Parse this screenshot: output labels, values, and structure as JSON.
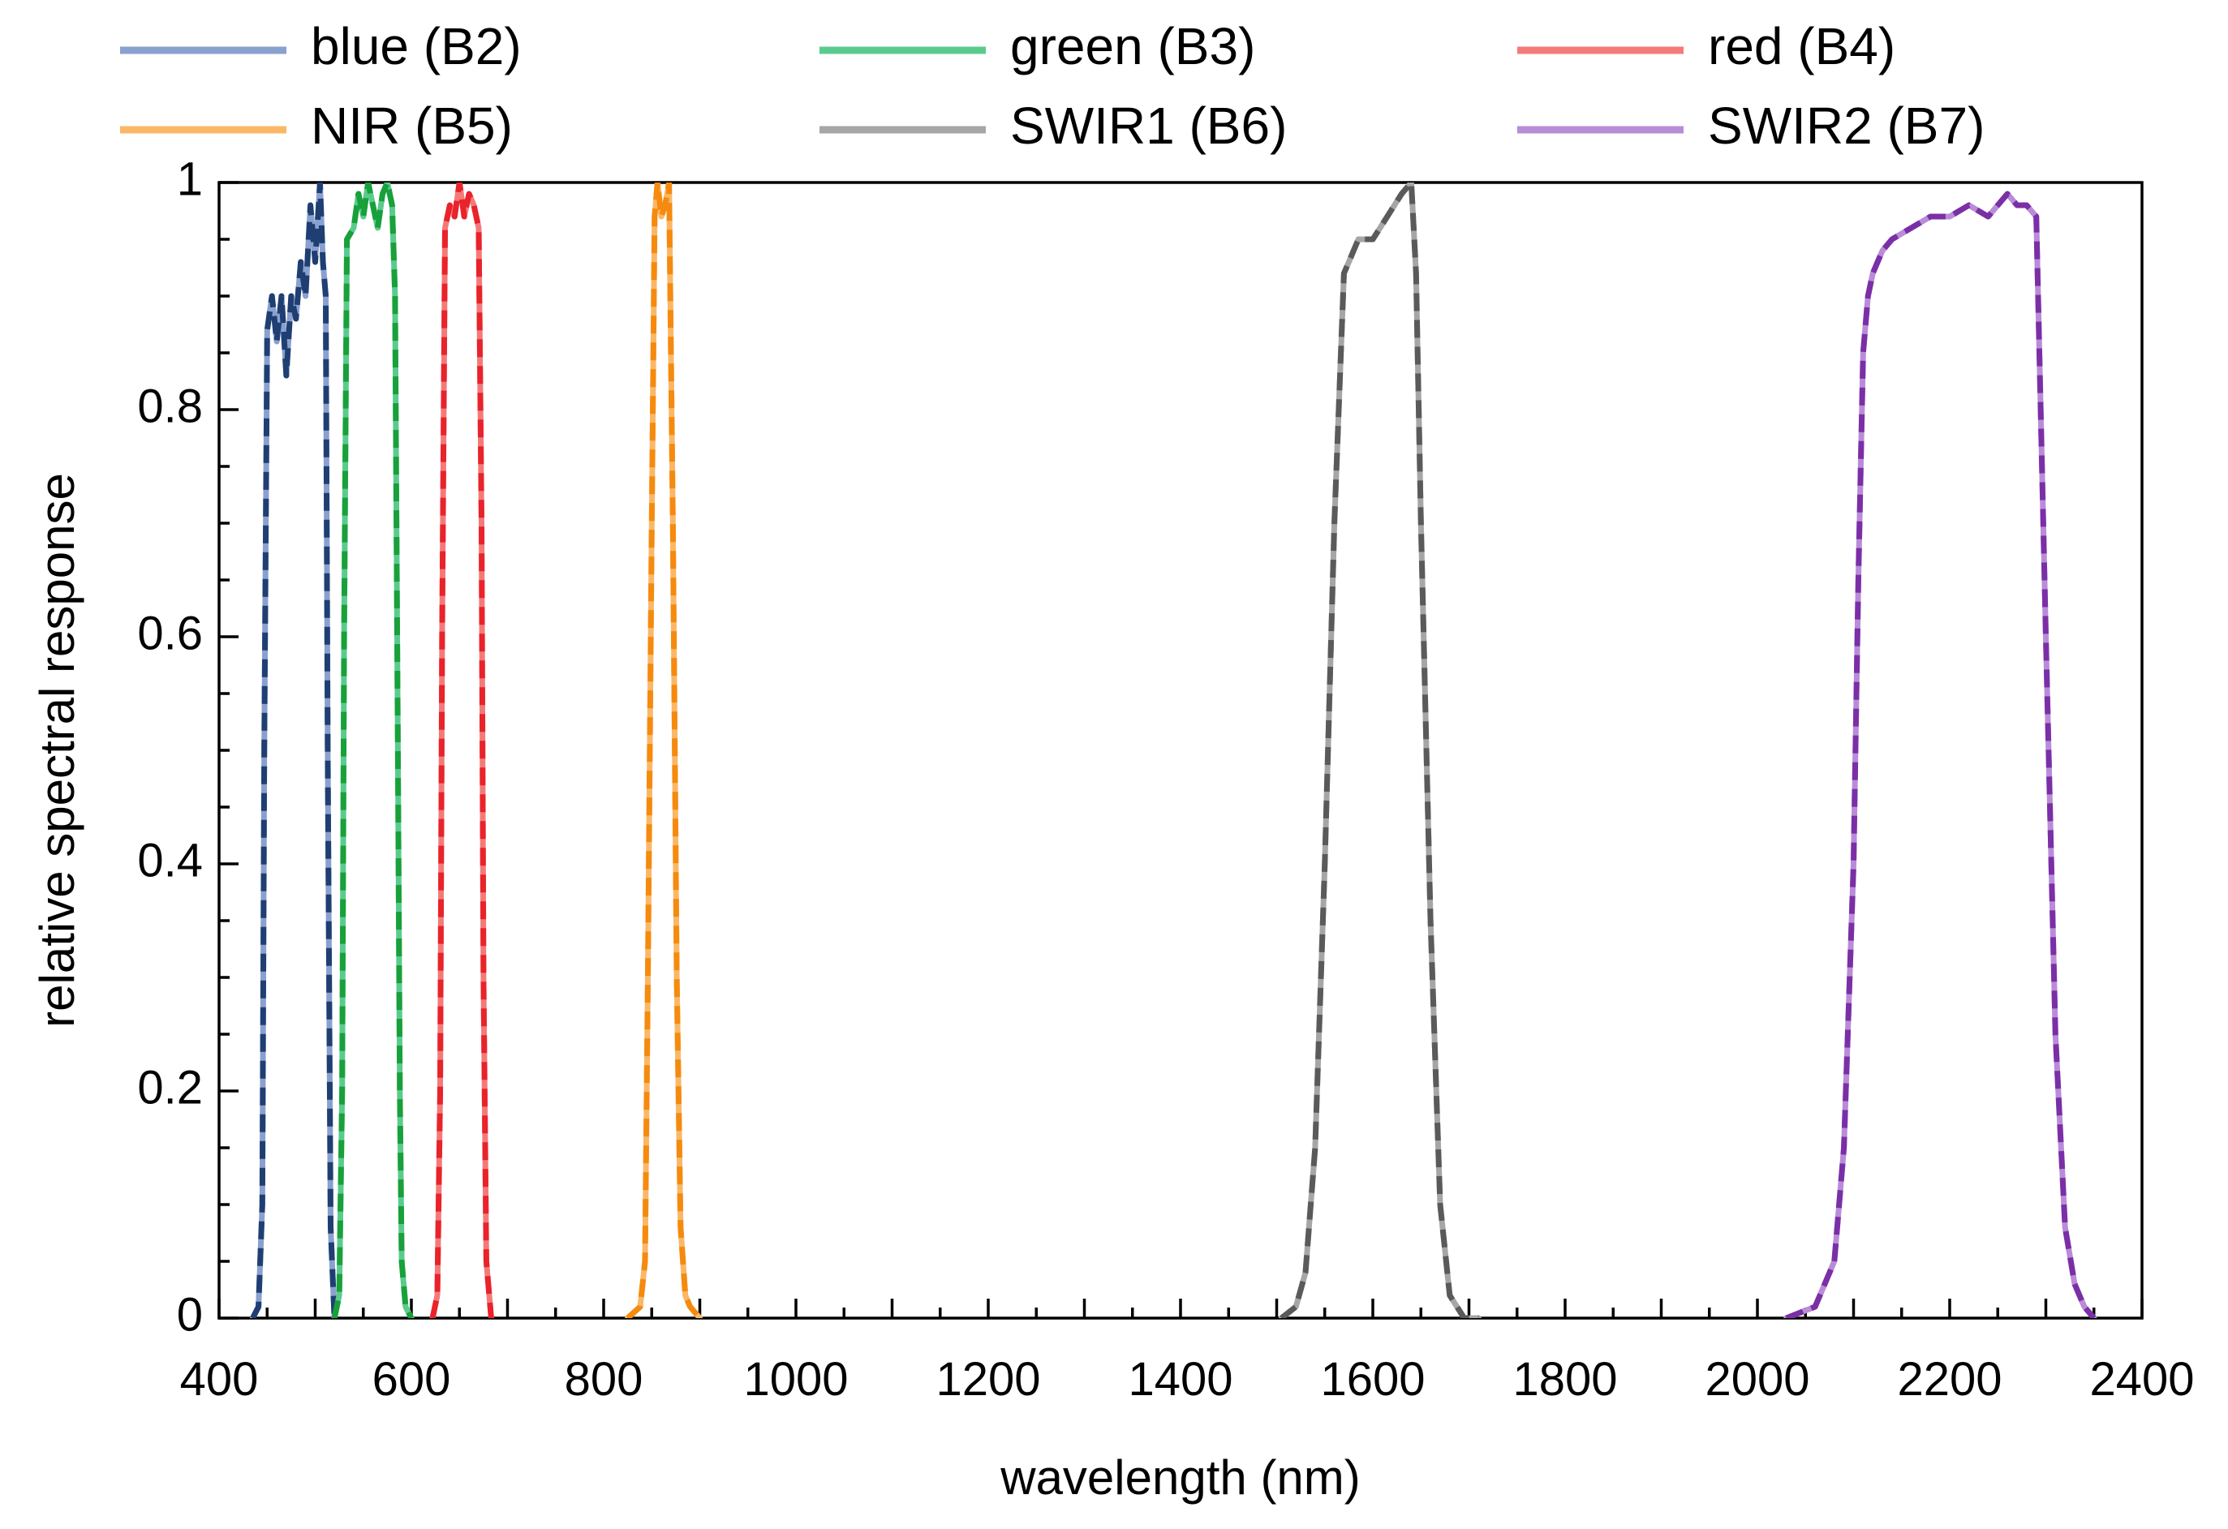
{
  "chart_data": {
    "type": "line",
    "xlabel": "wavelength (nm)",
    "ylabel": "relative spectral response",
    "xlim": [
      400,
      2400
    ],
    "ylim": [
      0,
      1
    ],
    "x_ticks": [
      "400",
      "600",
      "800",
      "1000",
      "1200",
      "1400",
      "1600",
      "1800",
      "2000",
      "2200",
      "2400"
    ],
    "y_ticks": [
      "0",
      "0.2",
      "0.4",
      "0.6",
      "0.8",
      "1"
    ],
    "legend_position": "top",
    "series": [
      {
        "name": "blue (B2)",
        "color": "#8AA0CE",
        "dash_color": "#1F3F73",
        "x": [
          435,
          441,
          445,
          447,
          450,
          455,
          460,
          465,
          470,
          475,
          480,
          485,
          490,
          495,
          500,
          505,
          508,
          511,
          513,
          516,
          520
        ],
        "y": [
          0,
          0.01,
          0.1,
          0.5,
          0.87,
          0.9,
          0.86,
          0.9,
          0.83,
          0.9,
          0.88,
          0.93,
          0.9,
          0.98,
          0.93,
          1.0,
          0.93,
          0.9,
          0.5,
          0.08,
          0
        ]
      },
      {
        "name": "green (B3)",
        "color": "#5BCB8D",
        "dash_color": "#18A03A",
        "x": [
          520,
          525,
          528,
          530,
          533,
          540,
          545,
          550,
          555,
          560,
          565,
          570,
          575,
          580,
          583,
          586,
          588,
          590,
          594,
          600
        ],
        "y": [
          0,
          0.02,
          0.2,
          0.6,
          0.95,
          0.96,
          0.99,
          0.97,
          1.0,
          0.98,
          0.96,
          0.99,
          1.0,
          0.98,
          0.9,
          0.5,
          0.2,
          0.05,
          0.01,
          0
        ]
      },
      {
        "name": "red (B4)",
        "color": "#F47A7A",
        "dash_color": "#E8232A",
        "x": [
          622,
          627,
          630,
          632,
          635,
          640,
          645,
          650,
          655,
          660,
          665,
          670,
          673,
          675,
          678,
          683
        ],
        "y": [
          0,
          0.02,
          0.2,
          0.6,
          0.96,
          0.98,
          0.97,
          1.0,
          0.97,
          0.99,
          0.98,
          0.96,
          0.7,
          0.3,
          0.05,
          0
        ]
      },
      {
        "name": "NIR (B5)",
        "color": "#FAB866",
        "dash_color": "#F58A0E",
        "x": [
          825,
          838,
          843,
          846,
          850,
          853,
          856,
          860,
          864,
          868,
          872,
          876,
          880,
          885,
          890,
          900
        ],
        "y": [
          0,
          0.01,
          0.05,
          0.3,
          0.7,
          0.97,
          1.0,
          0.97,
          0.98,
          1.0,
          0.7,
          0.3,
          0.08,
          0.02,
          0.01,
          0
        ]
      },
      {
        "name": "SWIR1 (B6)",
        "color": "#A6A6A6",
        "dash_color": "#5A5A5A",
        "x": [
          1505,
          1520,
          1530,
          1540,
          1550,
          1560,
          1570,
          1575,
          1580,
          1585,
          1600,
          1615,
          1630,
          1640,
          1645,
          1650,
          1660,
          1670,
          1680,
          1695,
          1710
        ],
        "y": [
          0,
          0.01,
          0.04,
          0.15,
          0.4,
          0.7,
          0.92,
          0.93,
          0.94,
          0.95,
          0.95,
          0.97,
          0.99,
          1.0,
          0.92,
          0.7,
          0.35,
          0.1,
          0.02,
          0,
          0
        ]
      },
      {
        "name": "SWIR2 (B7)",
        "color": "#B98CD8",
        "dash_color": "#7A2FA6",
        "x": [
          2030,
          2060,
          2080,
          2090,
          2100,
          2105,
          2110,
          2115,
          2120,
          2125,
          2130,
          2140,
          2160,
          2180,
          2200,
          2220,
          2240,
          2260,
          2270,
          2280,
          2290,
          2300,
          2310,
          2320,
          2330,
          2340,
          2350
        ],
        "y": [
          0,
          0.01,
          0.05,
          0.15,
          0.4,
          0.65,
          0.85,
          0.9,
          0.92,
          0.93,
          0.94,
          0.95,
          0.96,
          0.97,
          0.97,
          0.98,
          0.97,
          0.99,
          0.98,
          0.98,
          0.97,
          0.6,
          0.25,
          0.08,
          0.03,
          0.01,
          0
        ]
      }
    ]
  }
}
